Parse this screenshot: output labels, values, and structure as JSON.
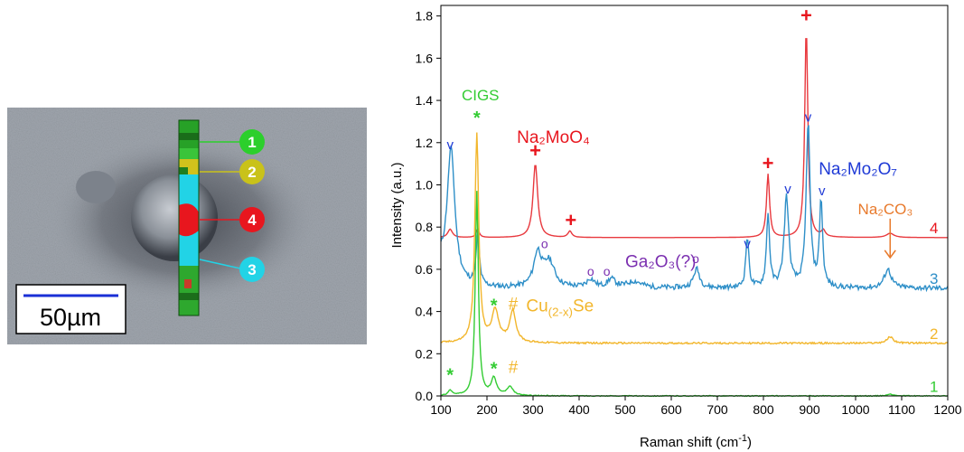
{
  "micrograph": {
    "scale_bar_label": "50µm",
    "markers": [
      {
        "label": "1",
        "color": "#2ccf2c"
      },
      {
        "label": "2",
        "color": "#c9c21a"
      },
      {
        "label": "4",
        "color": "#e8161e"
      },
      {
        "label": "3",
        "color": "#22d3e6"
      }
    ]
  },
  "chart_data": {
    "type": "line",
    "xlabel": "Raman shift (cm-1)",
    "ylabel": "Intensity (a.u.)",
    "xlim": [
      100,
      1200
    ],
    "ylim": [
      0,
      1.85
    ],
    "xticks": [
      100,
      200,
      300,
      400,
      500,
      600,
      700,
      800,
      900,
      1000,
      1100,
      1200
    ],
    "yticks": [
      0.0,
      0.2,
      0.4,
      0.6,
      0.8,
      1.0,
      1.2,
      1.4,
      1.6,
      1.8
    ],
    "series": [
      {
        "name": "4",
        "color": "#e8393e",
        "baseline": 0.75,
        "start": [
          100,
          0.75
        ],
        "peaks": [
          [
            120,
            0.04,
            6
          ],
          [
            180,
            0.04,
            4
          ],
          [
            305,
            0.35,
            6
          ],
          [
            380,
            0.03,
            5
          ],
          [
            810,
            0.3,
            4
          ],
          [
            893,
            1.0,
            4
          ],
          [
            930,
            0.03,
            5
          ],
          [
            1075,
            0.02,
            10
          ]
        ]
      },
      {
        "name": "3",
        "color": "#2e8fc8",
        "baseline": 0.51,
        "start": [
          100,
          0.62
        ],
        "peaks": [
          [
            122,
            0.62,
            10
          ],
          [
            180,
            0.25,
            4
          ],
          [
            310,
            0.16,
            10
          ],
          [
            335,
            0.12,
            14
          ],
          [
            425,
            0.04,
            10
          ],
          [
            470,
            0.04,
            10
          ],
          [
            520,
            0.03,
            20
          ],
          [
            655,
            0.09,
            8
          ],
          [
            765,
            0.24,
            4
          ],
          [
            810,
            0.35,
            4
          ],
          [
            850,
            0.43,
            6
          ],
          [
            897,
            0.78,
            5
          ],
          [
            925,
            0.41,
            4
          ],
          [
            1070,
            0.09,
            9
          ]
        ],
        "noise": 0.012
      },
      {
        "name": "2",
        "color": "#f2b62c",
        "baseline": 0.25,
        "start": [
          100,
          0.25
        ],
        "peaks": [
          [
            178,
            0.99,
            5
          ],
          [
            218,
            0.15,
            9
          ],
          [
            256,
            0.15,
            8
          ],
          [
            1075,
            0.03,
            8
          ]
        ],
        "noise": 0.004
      },
      {
        "name": "1",
        "color": "#33cc33",
        "baseline": 0.0,
        "start": [
          100,
          0.0
        ],
        "peaks": [
          [
            120,
            0.025,
            5
          ],
          [
            178,
            0.97,
            4
          ],
          [
            215,
            0.08,
            7
          ],
          [
            250,
            0.04,
            8
          ],
          [
            1075,
            0.008,
            8
          ]
        ],
        "noise": 0.002
      }
    ],
    "annotations": [
      {
        "text": "CIGS",
        "color": "#33cc33",
        "x": 145,
        "y": 1.4,
        "size": 17
      },
      {
        "text": "*",
        "color": "#33cc33",
        "x": 178,
        "y": 1.29,
        "size": 20
      },
      {
        "text": "Na₂MoO₄",
        "color": "#e8161e",
        "x": 265,
        "y": 1.2,
        "size": 19
      },
      {
        "text": "+",
        "color": "#e8161e",
        "x": 305,
        "y": 1.13,
        "size": 22
      },
      {
        "text": "+",
        "color": "#e8161e",
        "x": 382,
        "y": 0.8,
        "size": 22
      },
      {
        "text": "+",
        "color": "#e8161e",
        "x": 810,
        "y": 1.07,
        "size": 22
      },
      {
        "text": "+",
        "color": "#e8161e",
        "x": 893,
        "y": 1.77,
        "size": 22
      },
      {
        "text": "v",
        "color": "#1f3ad6",
        "x": 120,
        "y": 1.17,
        "size": 15
      },
      {
        "text": "v",
        "color": "#1f3ad6",
        "x": 765,
        "y": 0.7,
        "size": 15
      },
      {
        "text": "v",
        "color": "#1f3ad6",
        "x": 853,
        "y": 0.96,
        "size": 15
      },
      {
        "text": "v",
        "color": "#1f3ad6",
        "x": 897,
        "y": 1.3,
        "size": 15
      },
      {
        "text": "v",
        "color": "#1f3ad6",
        "x": 927,
        "y": 0.95,
        "size": 15
      },
      {
        "text": "Na₂Mo₂O₇",
        "color": "#1f3ad6",
        "x": 920,
        "y": 1.05,
        "size": 19
      },
      {
        "text": "Na₂CO₃",
        "color": "#e87a2c",
        "x": 1005,
        "y": 0.86,
        "size": 17
      },
      {
        "text": "4",
        "color": "#e8161e",
        "x": 1170,
        "y": 0.77,
        "size": 17
      },
      {
        "text": "o",
        "color": "#7b2fb0",
        "x": 325,
        "y": 0.7,
        "size": 14
      },
      {
        "text": "o",
        "color": "#7b2fb0",
        "x": 425,
        "y": 0.57,
        "size": 14
      },
      {
        "text": "o",
        "color": "#7b2fb0",
        "x": 460,
        "y": 0.57,
        "size": 14
      },
      {
        "text": "o",
        "color": "#7b2fb0",
        "x": 653,
        "y": 0.63,
        "size": 14
      },
      {
        "text": "Ga₂O₃(?)",
        "color": "#7b2fb0",
        "x": 500,
        "y": 0.61,
        "size": 19
      },
      {
        "text": "3",
        "color": "#2e8fc8",
        "x": 1170,
        "y": 0.53,
        "size": 17
      },
      {
        "text": "*",
        "color": "#33cc33",
        "x": 215,
        "y": 0.4,
        "size": 20
      },
      {
        "text": "#",
        "color": "#f2b62c",
        "x": 257,
        "y": 0.41,
        "size": 19
      },
      {
        "text": "Cu(2-x)Se",
        "color": "#f2b62c",
        "x": 285,
        "y": 0.4,
        "size": 19
      },
      {
        "text": "2",
        "color": "#f2b62c",
        "x": 1170,
        "y": 0.27,
        "size": 17
      },
      {
        "text": "*",
        "color": "#33cc33",
        "x": 120,
        "y": 0.07,
        "size": 20
      },
      {
        "text": "*",
        "color": "#33cc33",
        "x": 215,
        "y": 0.1,
        "size": 20
      },
      {
        "text": "#",
        "color": "#f2b62c",
        "x": 257,
        "y": 0.11,
        "size": 19
      },
      {
        "text": "1",
        "color": "#33cc33",
        "x": 1170,
        "y": 0.02,
        "size": 17
      }
    ]
  }
}
